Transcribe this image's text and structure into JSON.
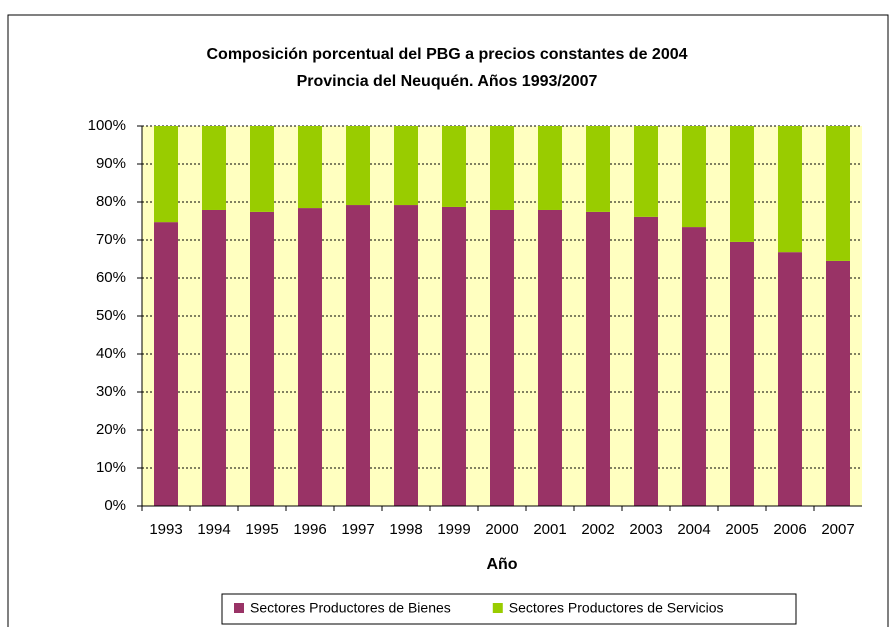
{
  "chart_data": {
    "type": "stacked_bar",
    "title": "Composición porcentual del PBG a precios constantes de 2004",
    "subtitle": "Provincia del Neuquén. Años 1993/2007",
    "x_label": "Año",
    "categories": [
      "1993",
      "1994",
      "1995",
      "1996",
      "1997",
      "1998",
      "1999",
      "2000",
      "2001",
      "2002",
      "2003",
      "2004",
      "2005",
      "2006",
      "2007"
    ],
    "series": [
      {
        "name": "Sectores Productores de Bienes",
        "color": "#993366",
        "values": [
          74.7,
          77.9,
          77.4,
          78.4,
          79.2,
          79.2,
          78.7,
          77.9,
          77.9,
          77.4,
          76.1,
          73.4,
          69.5,
          66.8,
          64.5
        ]
      },
      {
        "name": "Sectores Productores de Servicios",
        "color": "#99cc00",
        "values": [
          25.3,
          22.1,
          22.6,
          21.6,
          20.8,
          20.8,
          21.3,
          22.1,
          22.1,
          22.6,
          23.9,
          26.6,
          30.5,
          33.2,
          35.5
        ]
      }
    ],
    "ylim": [
      0,
      100
    ],
    "yticks": [
      {
        "value": 0,
        "label": "0%"
      },
      {
        "value": 10,
        "label": "10%"
      },
      {
        "value": 20,
        "label": "20%"
      },
      {
        "value": 30,
        "label": "30%"
      },
      {
        "value": 40,
        "label": "40%"
      },
      {
        "value": 50,
        "label": "50%"
      },
      {
        "value": 60,
        "label": "60%"
      },
      {
        "value": 70,
        "label": "70%"
      },
      {
        "value": 80,
        "label": "80%"
      },
      {
        "value": 90,
        "label": "90%"
      },
      {
        "value": 100,
        "label": "100%"
      }
    ],
    "grid": true,
    "plot_background": "#ffffc0",
    "legend": "bottom"
  }
}
